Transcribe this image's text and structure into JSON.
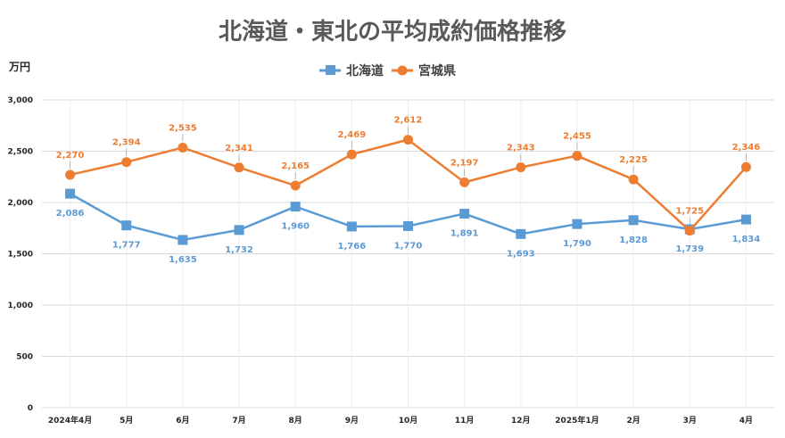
{
  "chart_data": {
    "type": "line",
    "title": "北海道・東北の平均成約価格推移",
    "ylabel": "万円",
    "ylim": [
      0,
      3000
    ],
    "yticks": [
      0,
      500,
      1000,
      1500,
      2000,
      2500,
      3000
    ],
    "ytick_labels": [
      "0",
      "500",
      "1,000",
      "1,500",
      "2,000",
      "2,500",
      "3,000"
    ],
    "grid": true,
    "legend_position": "top-center",
    "categories": [
      "2024年4月",
      "5月",
      "6月",
      "7月",
      "8月",
      "9月",
      "10月",
      "11月",
      "12月",
      "2025年1月",
      "2月",
      "3月",
      "4月"
    ],
    "series": [
      {
        "name": "北海道",
        "color": "#5B9BD5",
        "marker": "square",
        "values": [
          2086,
          1777,
          1635,
          1732,
          1960,
          1766,
          1770,
          1891,
          1693,
          1790,
          1828,
          1739,
          1834
        ],
        "labels": [
          "2,086",
          "1,777",
          "1,635",
          "1,732",
          "1,960",
          "1,766",
          "1,770",
          "1,891",
          "1,693",
          "1,790",
          "1,828",
          "1,739",
          "1,834"
        ]
      },
      {
        "name": "宮城県",
        "color": "#ED7D31",
        "marker": "circle",
        "values": [
          2270,
          2394,
          2535,
          2341,
          2165,
          2469,
          2612,
          2197,
          2343,
          2455,
          2225,
          1725,
          2346
        ],
        "labels": [
          "2,270",
          "2,394",
          "2,535",
          "2,341",
          "2,165",
          "2,469",
          "2,612",
          "2,197",
          "2,343",
          "2,455",
          "2,225",
          "1,725",
          "2,346"
        ]
      }
    ]
  }
}
